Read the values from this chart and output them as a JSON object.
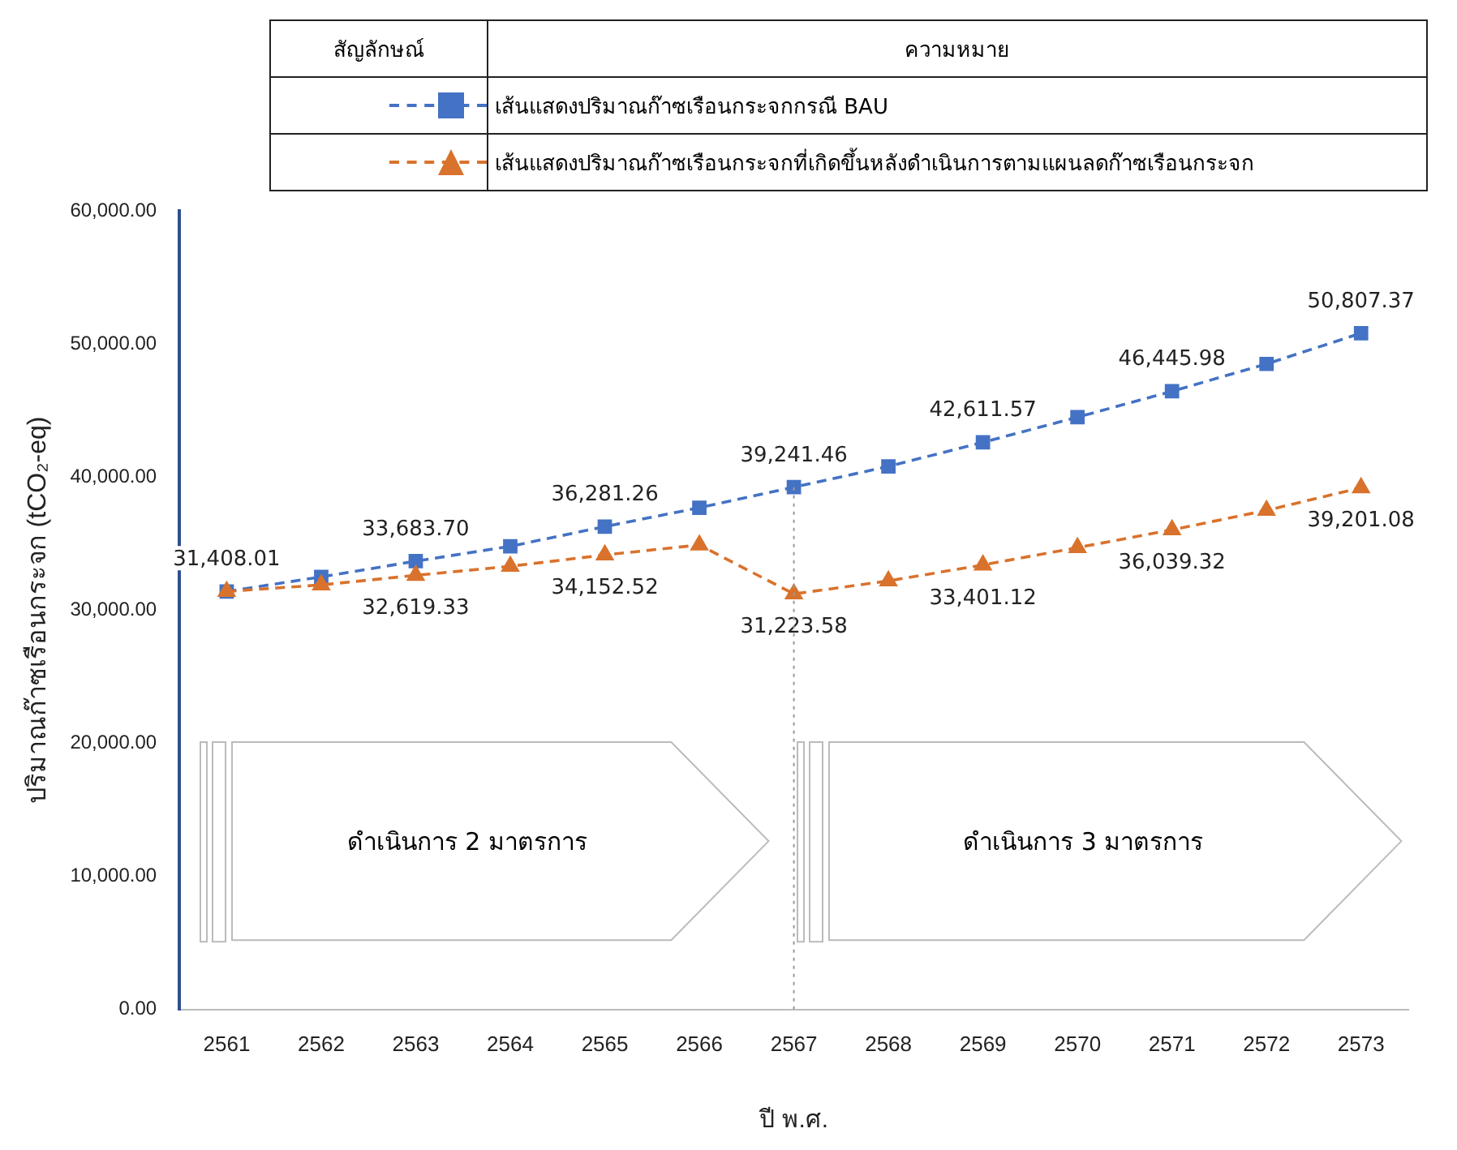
{
  "chart_data": {
    "type": "line",
    "categories": [
      "2561",
      "2562",
      "2563",
      "2564",
      "2565",
      "2566",
      "2567",
      "2568",
      "2569",
      "2570",
      "2571",
      "2572",
      "2573"
    ],
    "series": [
      {
        "name": "เส้นแสดงปริมาณก๊าซเรือนกระจกกรณี BAU",
        "color": "#4472c4",
        "marker": "square",
        "line_style": "dashed",
        "values": [
          31408.01,
          32500,
          33683.7,
          34800,
          36281.26,
          37700,
          39241.46,
          40800,
          42611.57,
          44500,
          46445.98,
          48500,
          50807.37
        ],
        "value_labels": [
          "31,408.01",
          null,
          "33,683.70",
          null,
          "36,281.26",
          null,
          "39,241.46",
          null,
          "42,611.57",
          null,
          "46,445.98",
          null,
          "50,807.37"
        ]
      },
      {
        "name": "เส้นแสดงปริมาณก๊าซเรือนกระจกที่เกิดขึ้นหลังดำเนินการตามแผนลดก๊าซเรือนกระจก",
        "color": "#d9722c",
        "marker": "triangle",
        "line_style": "dashed",
        "values": [
          31408.01,
          31900,
          32619.33,
          33300,
          34152.52,
          34900,
          31223.58,
          32200,
          33401.12,
          34700,
          36039.32,
          37500,
          39201.08
        ],
        "value_labels": [
          null,
          null,
          "32,619.33",
          null,
          "34,152.52",
          null,
          "31,223.58",
          null,
          "33,401.12",
          null,
          "36,039.32",
          null,
          "39,201.08"
        ]
      }
    ],
    "xlabel": "ปี พ.ศ.",
    "ylabel": "ปริมาณก๊าซเรือนกระจก (tCO₂-eq)",
    "ylim": [
      0,
      60000
    ],
    "yticks": [
      {
        "value": 0,
        "label": "0.00"
      },
      {
        "value": 10000,
        "label": "10,000.00"
      },
      {
        "value": 20000,
        "label": "20,000.00"
      },
      {
        "value": 30000,
        "label": "30,000.00"
      },
      {
        "value": 40000,
        "label": "40,000.00"
      },
      {
        "value": 50000,
        "label": "50,000.00"
      },
      {
        "value": 60000,
        "label": "60,000.00"
      }
    ],
    "grid": false,
    "legend": "top",
    "legend_title": "สัญลักษณ์",
    "ref_lines": [
      {
        "axis": "x",
        "value": "2567",
        "color": "#999999",
        "line_style": "dotted"
      }
    ],
    "annotations": [
      "ความหมาย",
      "ดำเนินการ 2 มาตรการ",
      "ดำเนินการ 3 มาตรการ"
    ]
  }
}
